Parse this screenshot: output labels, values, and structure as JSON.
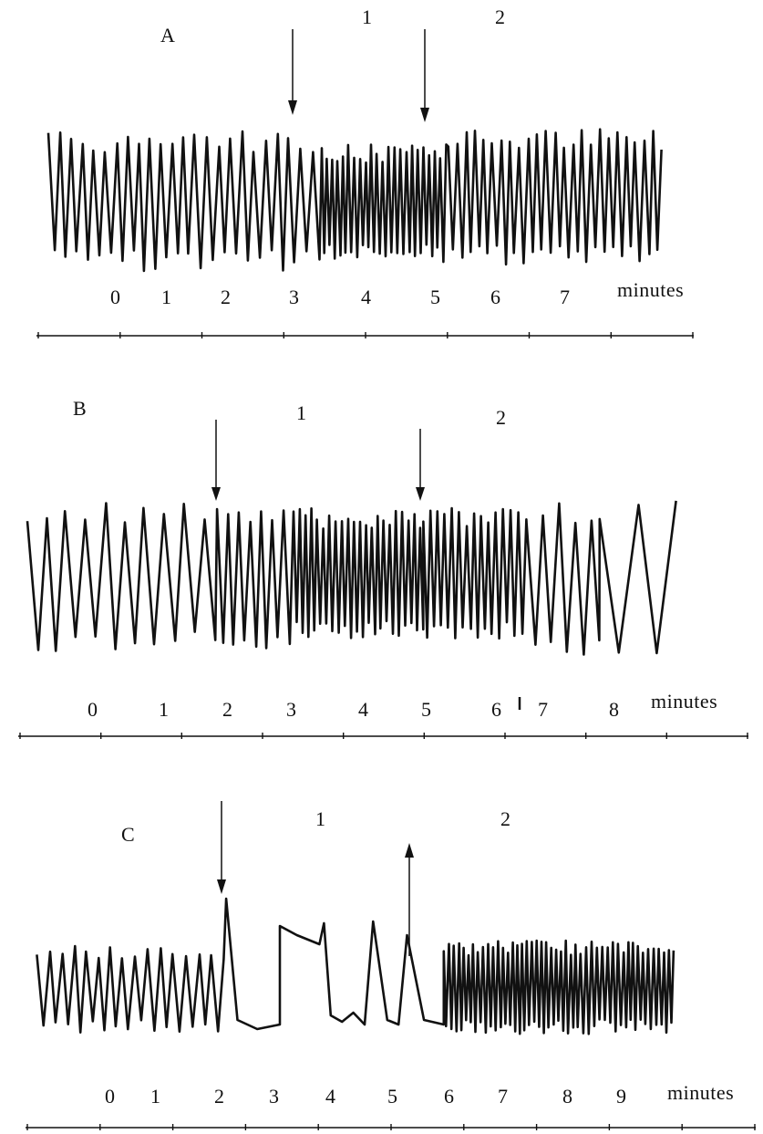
{
  "colors": {
    "ink": "#111111",
    "background": "#ffffff"
  },
  "chart_data": [
    {
      "type": "line",
      "panel_label": "A",
      "x_unit_label": "minutes",
      "x_tick_labels": [
        "0",
        "1",
        "2",
        "3",
        "4",
        "5",
        "6",
        "7"
      ],
      "xlim": [
        -1,
        8
      ],
      "markers": [
        {
          "label": "1",
          "x": 3.0,
          "direction": "down"
        },
        {
          "label": "2",
          "x": 4.85,
          "direction": "down"
        }
      ],
      "series": [
        {
          "segments": [
            {
              "x_start": -1.0,
              "x_end": 3.0,
              "period_min": 0.167,
              "amplitude": 1.0,
              "center": 0.0
            },
            {
              "x_start": 3.0,
              "x_end": 4.85,
              "period_min": 0.083,
              "amplitude": 0.85,
              "center": -0.05
            },
            {
              "x_start": 4.85,
              "x_end": 8.0,
              "period_min": 0.13,
              "amplitude": 1.0,
              "center": 0.05
            }
          ]
        }
      ]
    },
    {
      "type": "line",
      "panel_label": "B",
      "x_unit_label": "minutes",
      "x_tick_labels": [
        "0",
        "1",
        "2",
        "3",
        "4",
        "5",
        "6",
        "7",
        "8"
      ],
      "xlim": [
        -1,
        9
      ],
      "markers": [
        {
          "label": "1",
          "x": 1.85,
          "direction": "down"
        },
        {
          "label": "2",
          "x": 4.95,
          "direction": "down"
        }
      ],
      "series": [
        {
          "segments": [
            {
              "x_start": -1.0,
              "x_end": 1.85,
              "period_min": 0.3,
              "amplitude": 1.0,
              "center": 0.0
            },
            {
              "x_start": 1.85,
              "x_end": 3.0,
              "period_min": 0.17,
              "amplitude": 1.0,
              "center": 0.0
            },
            {
              "x_start": 3.0,
              "x_end": 4.95,
              "period_min": 0.09,
              "amplitude": 0.85,
              "center": 0.05
            },
            {
              "x_start": 4.95,
              "x_end": 6.5,
              "period_min": 0.11,
              "amplitude": 0.85,
              "center": 0.05
            },
            {
              "x_start": 6.5,
              "x_end": 7.6,
              "period_min": 0.25,
              "amplitude": 1.0,
              "center": 0.0
            },
            {
              "x_start": 7.6,
              "x_end": 9.0,
              "period_min": 0.55,
              "amplitude": 1.05,
              "center": 0.0
            }
          ]
        }
      ]
    },
    {
      "type": "line",
      "panel_label": "C",
      "x_unit_label": "minutes",
      "x_tick_labels": [
        "0",
        "1",
        "2",
        "3",
        "4",
        "5",
        "6",
        "7",
        "8",
        "9"
      ],
      "xlim": [
        -1.3,
        10
      ],
      "markers": [
        {
          "label": "1",
          "x": 2.05,
          "direction": "down"
        },
        {
          "label": "2",
          "x": 5.25,
          "direction": "up"
        }
      ],
      "series": [
        {
          "segments": [
            {
              "x_start": -1.3,
              "x_end": 2.05,
              "period_min": 0.22,
              "amplitude": 0.8,
              "center": 0.0
            },
            {
              "x_start": 2.05,
              "x_end": 5.9,
              "pattern": "slow-peaks"
            },
            {
              "x_start": 5.9,
              "x_end": 10.0,
              "period_min": 0.09,
              "amplitude": 0.85,
              "center": 0.05
            }
          ]
        }
      ]
    }
  ]
}
